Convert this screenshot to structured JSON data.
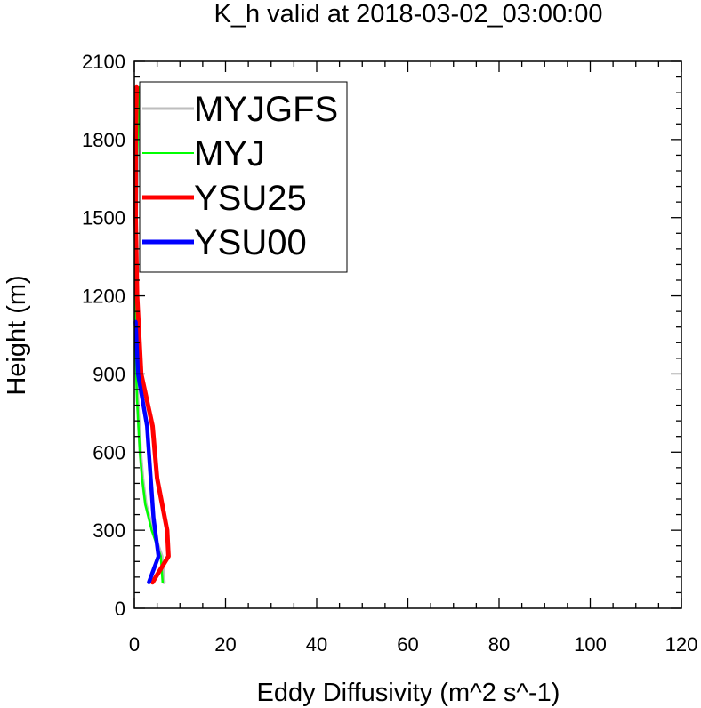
{
  "chart_data": {
    "type": "line",
    "title": "K_h valid at 2018-03-02_03:00:00",
    "xlabel": "Eddy Diffusivity (m^2 s^-1)",
    "ylabel": "Height (m)",
    "xlim": [
      0,
      120
    ],
    "ylim": [
      0,
      2100
    ],
    "xticks": [
      0,
      20,
      40,
      60,
      80,
      100,
      120
    ],
    "yticks": [
      0,
      300,
      600,
      900,
      1200,
      1500,
      1800,
      2100
    ],
    "grid": false,
    "legend_position": "top-left",
    "series": [
      {
        "name": "MYJGFS",
        "color": "#bebebe",
        "points": [
          [
            6.5,
            100
          ],
          [
            6.0,
            200
          ],
          [
            4.0,
            300
          ],
          [
            2.5,
            400
          ],
          [
            1.8,
            500
          ],
          [
            1.3,
            600
          ],
          [
            1.0,
            700
          ],
          [
            0.7,
            800
          ],
          [
            0.5,
            900
          ],
          [
            0.4,
            1000
          ],
          [
            0.3,
            1200
          ],
          [
            0.3,
            1400
          ],
          [
            0.5,
            1600
          ],
          [
            0.9,
            1800
          ],
          [
            1.3,
            2000
          ]
        ]
      },
      {
        "name": "MYJ",
        "color": "#00ff00",
        "points": [
          [
            6.2,
            100
          ],
          [
            5.8,
            200
          ],
          [
            3.8,
            300
          ],
          [
            2.4,
            400
          ],
          [
            1.7,
            500
          ],
          [
            1.2,
            600
          ],
          [
            0.9,
            700
          ],
          [
            0.6,
            800
          ],
          [
            0.4,
            900
          ],
          [
            0.3,
            1000
          ],
          [
            0.2,
            1200
          ],
          [
            0.2,
            1400
          ],
          [
            0.3,
            1600
          ],
          [
            0.7,
            1800
          ],
          [
            1.1,
            2000
          ]
        ]
      },
      {
        "name": "YSU25",
        "color": "#ff0000",
        "points": [
          [
            4.0,
            100
          ],
          [
            7.5,
            200
          ],
          [
            7.2,
            300
          ],
          [
            5.0,
            500
          ],
          [
            4.0,
            700
          ],
          [
            1.5,
            900
          ],
          [
            0.6,
            1200
          ],
          [
            0.3,
            1500
          ],
          [
            0.3,
            1800
          ],
          [
            0.5,
            2000
          ]
        ]
      },
      {
        "name": "YSU00",
        "color": "#0000ff",
        "points": [
          [
            3.2,
            100
          ],
          [
            5.3,
            200
          ],
          [
            4.2,
            350
          ],
          [
            3.6,
            500
          ],
          [
            2.8,
            700
          ],
          [
            0.8,
            900
          ],
          [
            0.3,
            1100
          ]
        ]
      }
    ]
  }
}
